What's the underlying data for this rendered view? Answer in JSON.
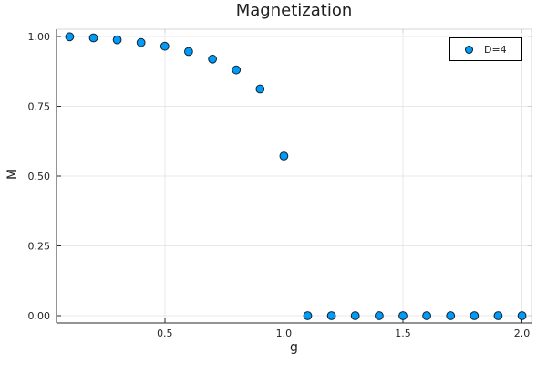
{
  "chart_data": {
    "type": "scatter",
    "title": "Magnetization",
    "xlabel": "g",
    "ylabel": "M",
    "series": [
      {
        "name": "D=4",
        "marker": "circle",
        "color": "#009af9",
        "x": [
          0.1,
          0.2,
          0.3,
          0.4,
          0.5,
          0.6,
          0.7,
          0.8,
          0.9,
          1.0,
          1.1,
          1.2,
          1.3,
          1.4,
          1.5,
          1.6,
          1.7,
          1.8,
          1.9,
          2.0
        ],
        "y": [
          0.999,
          0.995,
          0.988,
          0.978,
          0.965,
          0.946,
          0.919,
          0.88,
          0.812,
          0.572,
          0.0,
          0.0,
          0.0,
          0.0,
          0.0,
          0.0,
          0.0,
          0.0,
          0.0,
          0.0
        ]
      }
    ],
    "xlim": [
      0.045,
      2.04
    ],
    "ylim": [
      -0.026,
      1.026
    ],
    "x_ticks": {
      "values": [
        0.5,
        1.0,
        1.5,
        2.0
      ],
      "labels": [
        "0.5",
        "1.0",
        "1.5",
        "2.0"
      ]
    },
    "y_ticks": {
      "values": [
        0.0,
        0.25,
        0.5,
        0.75,
        1.0
      ],
      "labels": [
        "0.00",
        "0.25",
        "0.50",
        "0.75",
        "1.00"
      ]
    },
    "grid": true,
    "legend_position": "top-right",
    "colors": {
      "background": "#ffffff",
      "grid": "#e8e8e8",
      "frame": "#d4d4d4",
      "mirror_tick": "#cfcfcf",
      "axis": "#2a2a2a",
      "text": "#252525",
      "marker_fill": "#009af9",
      "marker_stroke": "rgba(0,0,0,0.82)"
    }
  }
}
